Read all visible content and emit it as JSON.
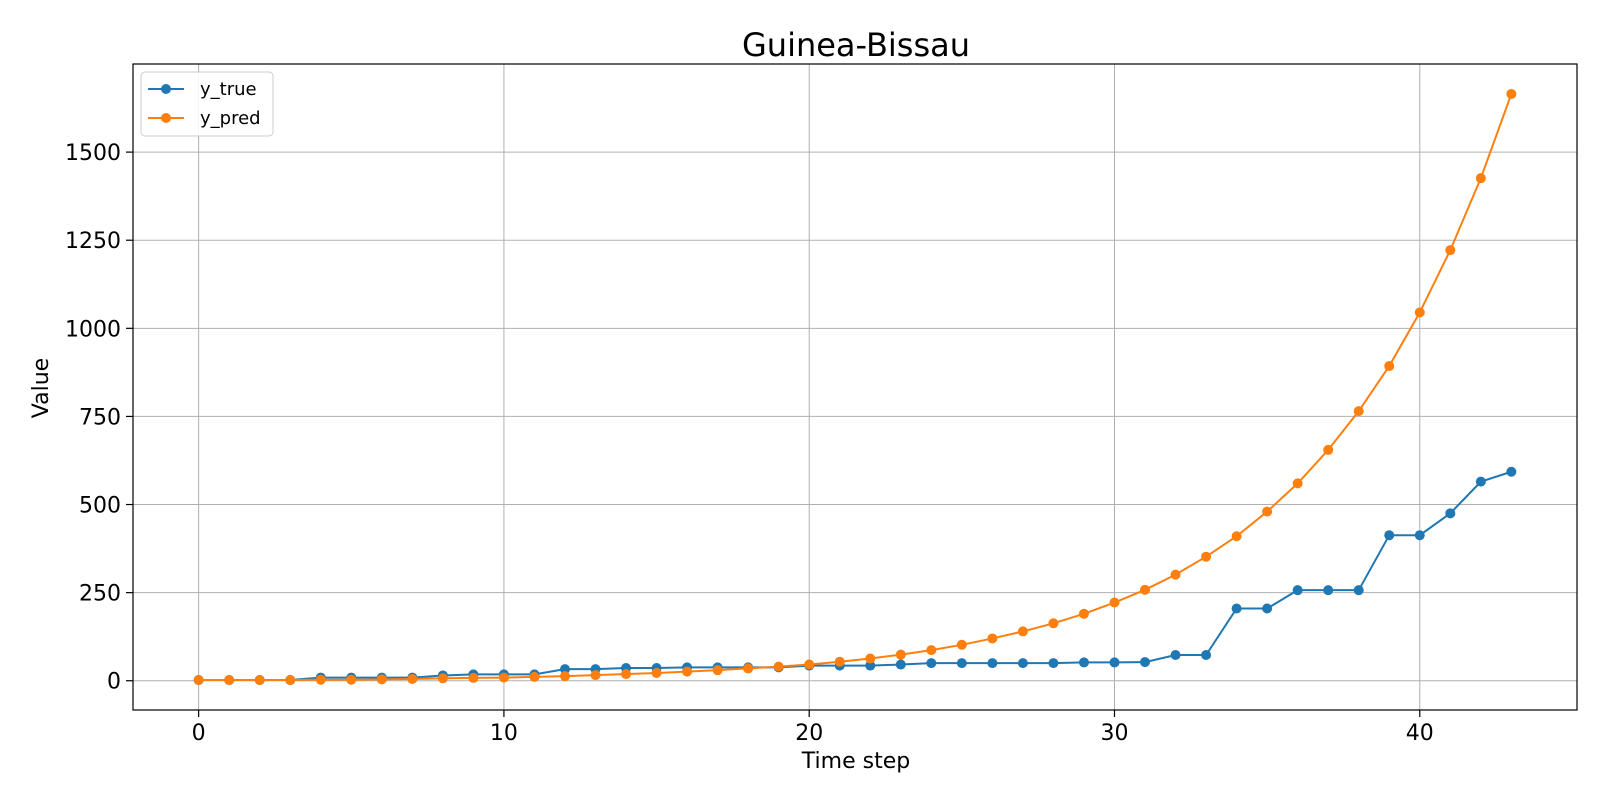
{
  "chart_data": {
    "type": "line",
    "title": "Guinea-Bissau",
    "xlabel": "Time step",
    "ylabel": "Value",
    "xlim": [
      -2.15,
      45.15
    ],
    "ylim": [
      -83,
      1750
    ],
    "xticks": [
      0,
      10,
      20,
      30,
      40
    ],
    "yticks": [
      0,
      250,
      500,
      750,
      1000,
      1250,
      1500
    ],
    "grid": true,
    "legend_position": "top-left",
    "x": [
      0,
      1,
      2,
      3,
      4,
      5,
      6,
      7,
      8,
      9,
      10,
      11,
      12,
      13,
      14,
      15,
      16,
      17,
      18,
      19,
      20,
      21,
      22,
      23,
      24,
      25,
      26,
      27,
      28,
      29,
      30,
      31,
      32,
      33,
      34,
      35,
      36,
      37,
      38,
      39,
      40,
      41,
      42,
      43
    ],
    "series": [
      {
        "name": "y_true",
        "color": "#1f77b4",
        "values": [
          2,
          2,
          2,
          2,
          9,
          9,
          9,
          9,
          15,
          18,
          18,
          18,
          33,
          33,
          36,
          36,
          38,
          38,
          38,
          38,
          43,
          43,
          43,
          46,
          50,
          50,
          50,
          50,
          50,
          52,
          52,
          53,
          73,
          73,
          205,
          205,
          257,
          257,
          257,
          413,
          413,
          475,
          565,
          593
        ]
      },
      {
        "name": "y_pred",
        "color": "#ff7f0e",
        "values": [
          2,
          2,
          2,
          2,
          3,
          3,
          4,
          5,
          7,
          8,
          9,
          11,
          13,
          16,
          19,
          22,
          26,
          30,
          35,
          40,
          46,
          54,
          63,
          74,
          87,
          102,
          120,
          140,
          163,
          190,
          222,
          258,
          301,
          352,
          410,
          480,
          560,
          655,
          765,
          893,
          1045,
          1222,
          1426,
          1665
        ]
      }
    ]
  }
}
